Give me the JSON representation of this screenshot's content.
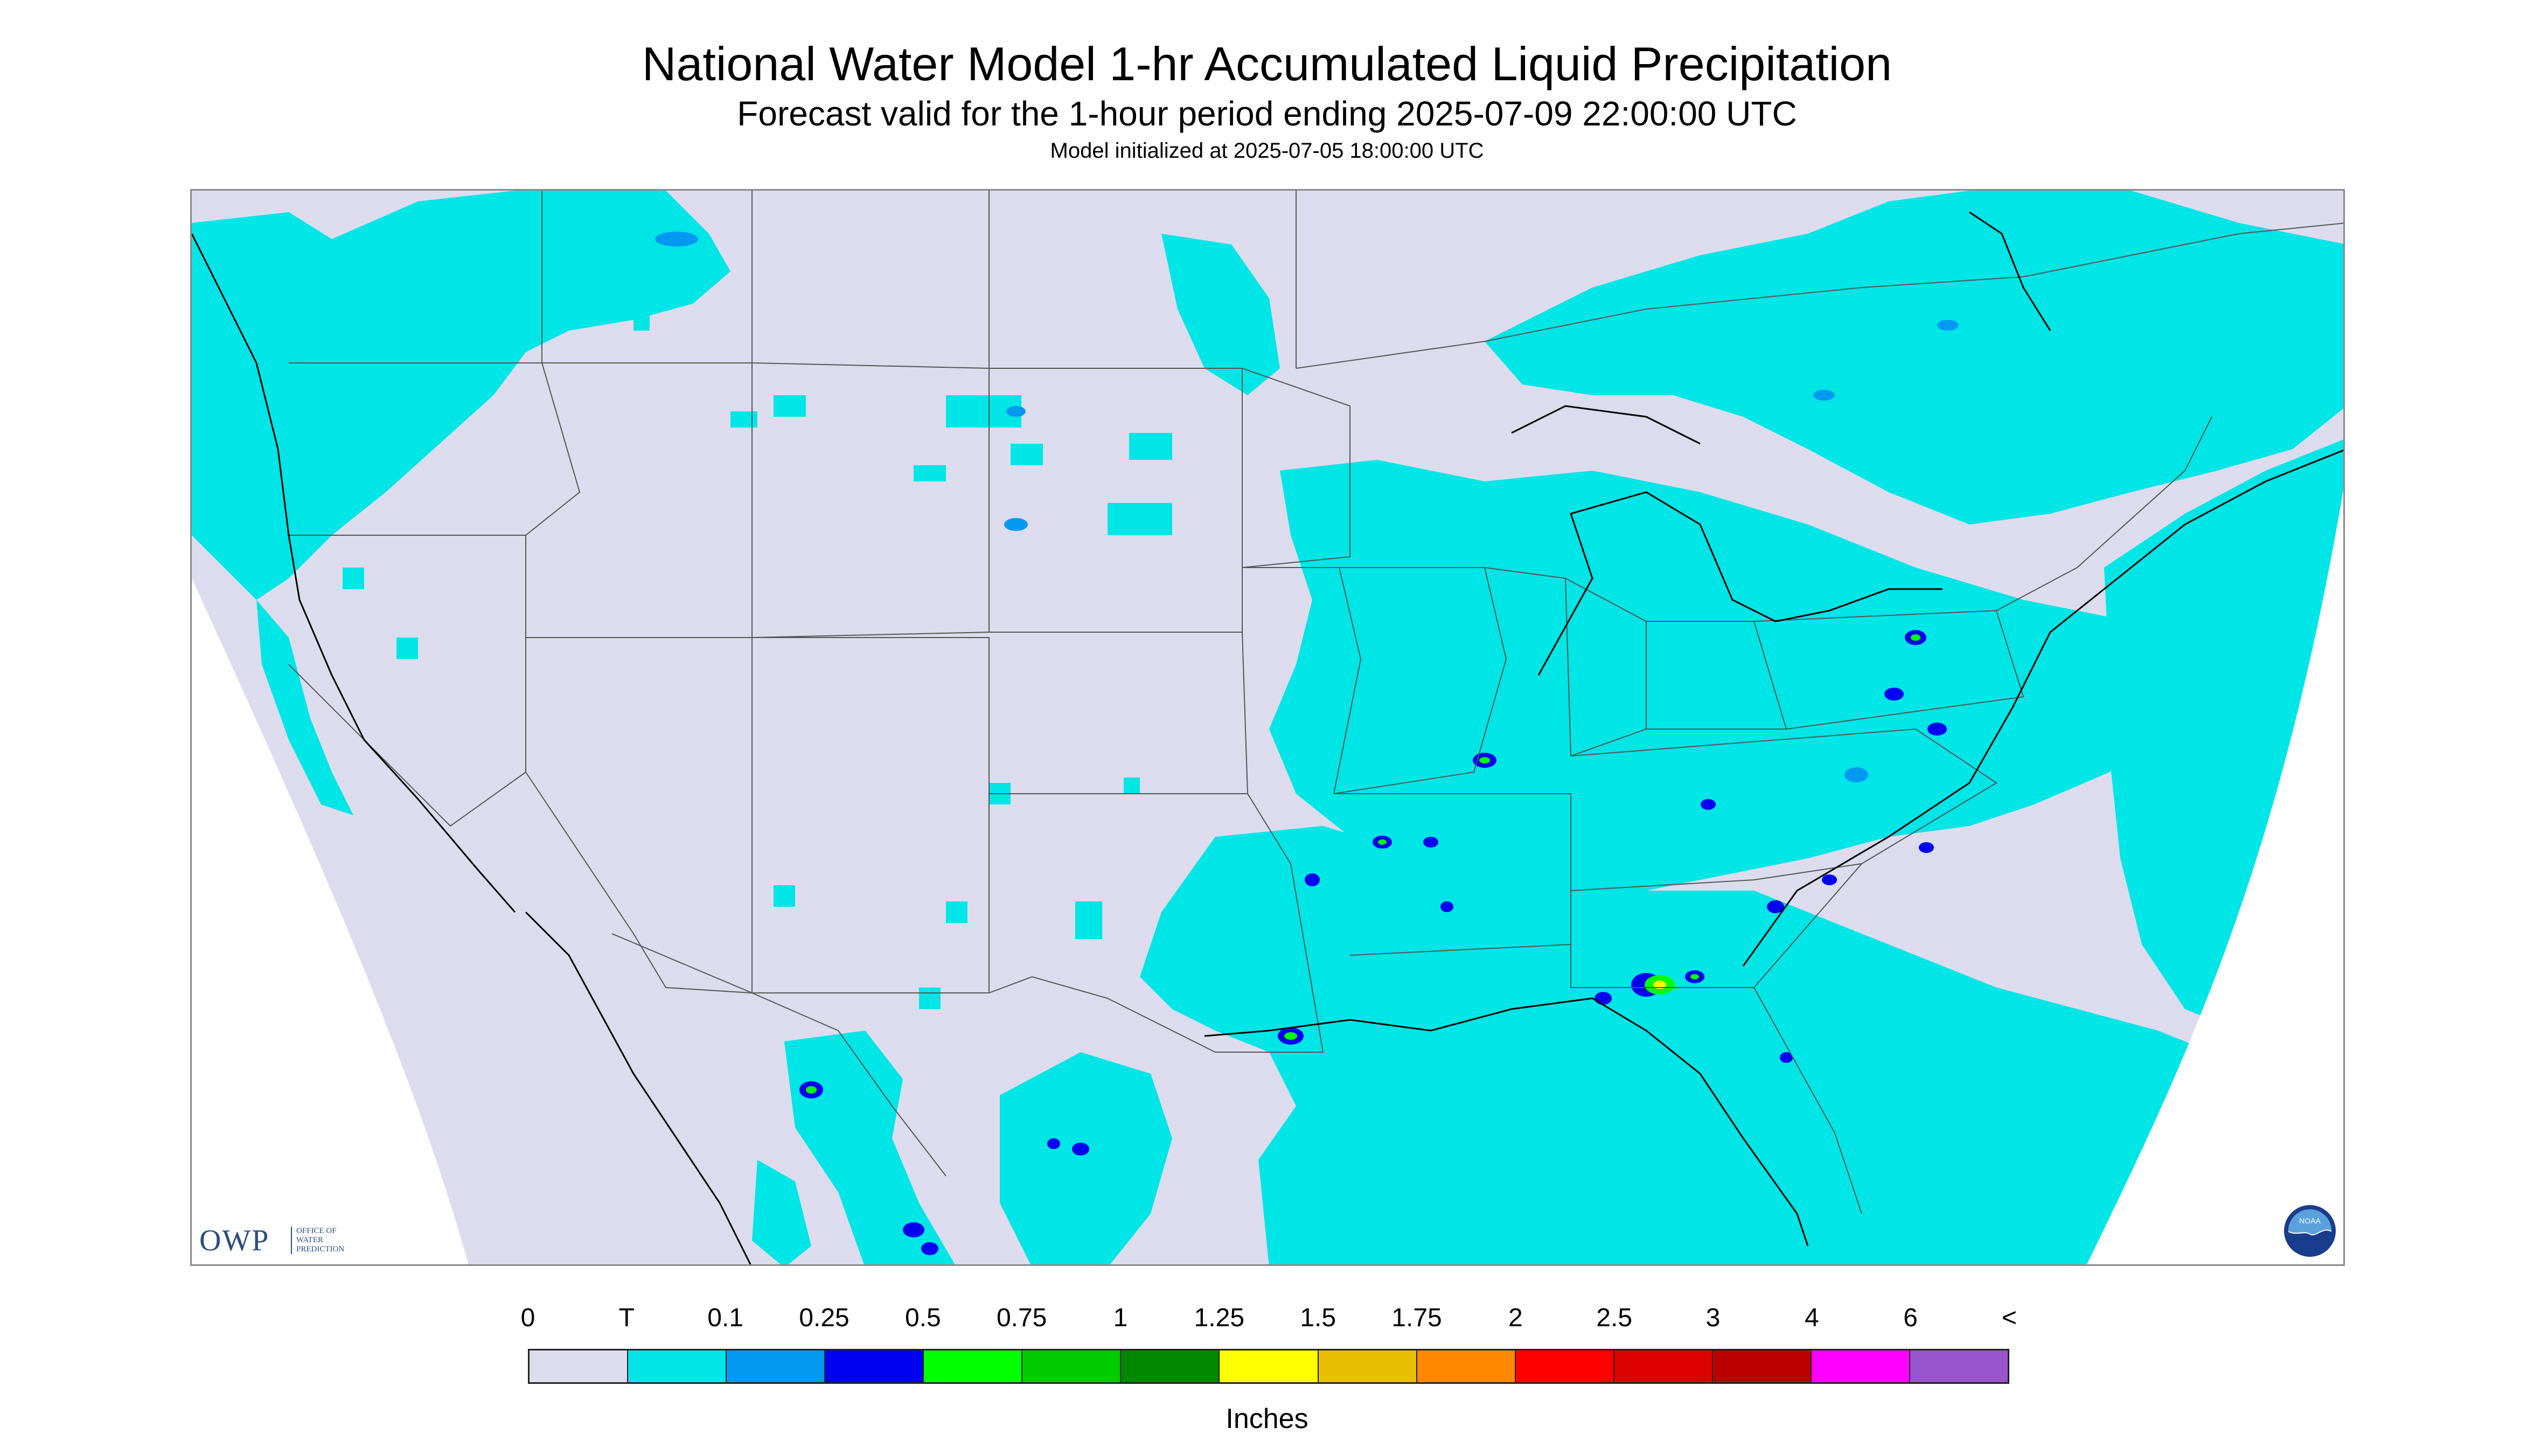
{
  "header": {
    "title": "National Water Model 1-hr Accumulated Liquid Precipitation",
    "subtitle": "Forecast valid for the 1-hour period ending 2025-07-09 22:00:00 UTC",
    "init_line": "Model initialized at 2025-07-05 18:00:00 UTC"
  },
  "logos": {
    "owp_letters": "OWP",
    "owp_sub_1": "OFFICE OF",
    "owp_sub_2": "WATER",
    "owp_sub_3": "PREDICTION",
    "noaa_text": "NOAA"
  },
  "legend": {
    "tick_labels": [
      "0",
      "T",
      "0.1",
      "0.25",
      "0.5",
      "0.75",
      "1",
      "1.25",
      "1.5",
      "1.75",
      "2",
      "2.5",
      "3",
      "4",
      "6",
      "<"
    ],
    "colors": [
      "#dcdcee",
      "#00e5e5",
      "#0099f0",
      "#0000f0",
      "#00ff00",
      "#00cc00",
      "#008800",
      "#ffff00",
      "#e5bf00",
      "#ff8800",
      "#ff0000",
      "#dd0000",
      "#bb0000",
      "#ff00ff",
      "#9955cc"
    ],
    "units": "Inches"
  },
  "map_colors": {
    "no_precip": "#dcdcee",
    "trace": "#00e5e5",
    "light": "#0099f0",
    "moderate": "#0000f0",
    "green": "#00ff00",
    "dark_green": "#008800",
    "yellow": "#ffff00",
    "boundary": "#555555",
    "coast": "#000000"
  }
}
